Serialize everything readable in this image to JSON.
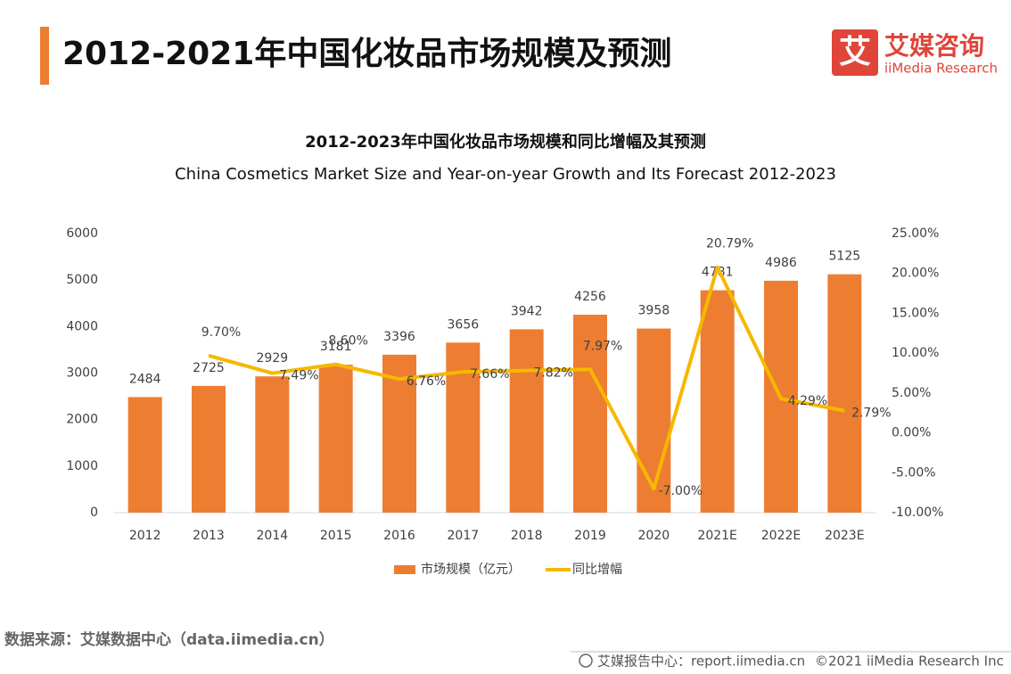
{
  "header": {
    "title": "2012-2021年中国化妆品市场规模及预测",
    "logo_mark": "艾",
    "logo_cn": "艾媒咨询",
    "logo_en": "iiMedia Research"
  },
  "chart_data": {
    "type": "bar",
    "title": "2012-2023年中国化妆品市场规模和同比增幅及其预测",
    "subtitle": "China Cosmetics Market Size and Year-on-year Growth and Its Forecast 2012-2023",
    "categories": [
      "2012",
      "2013",
      "2014",
      "2015",
      "2016",
      "2017",
      "2018",
      "2019",
      "2020",
      "2021E",
      "2022E",
      "2023E"
    ],
    "series": [
      {
        "name": "市场规模（亿元）",
        "type": "bar",
        "color": "#ed7d31",
        "values": [
          2484,
          2725,
          2929,
          3181,
          3396,
          3656,
          3942,
          4256,
          3958,
          4781,
          4986,
          5125
        ]
      },
      {
        "name": "同比增幅",
        "type": "line",
        "axis": "y2",
        "color": "#f5b800",
        "values": [
          null,
          9.7,
          7.49,
          8.6,
          6.76,
          7.66,
          7.82,
          7.97,
          -7.0,
          20.79,
          4.29,
          2.79
        ],
        "value_labels": [
          null,
          "9.70%",
          "7.49%",
          "8.60%",
          "6.76%",
          "7.66%",
          "7.82%",
          "7.97%",
          "-7.00%",
          "20.79%",
          "4.29%",
          "2.79%"
        ]
      }
    ],
    "ylim": [
      0,
      6000
    ],
    "yticks": [
      0,
      1000,
      2000,
      3000,
      4000,
      5000,
      6000
    ],
    "y2lim": [
      -10,
      25
    ],
    "y2ticks": [
      {
        "value": -10,
        "label": "-10.00%"
      },
      {
        "value": -5,
        "label": "-5.00%"
      },
      {
        "value": 0,
        "label": "0.00%"
      },
      {
        "value": 5,
        "label": "5.00%"
      },
      {
        "value": 10,
        "label": "10.00%"
      },
      {
        "value": 15,
        "label": "15.00%"
      },
      {
        "value": 20,
        "label": "20.00%"
      },
      {
        "value": 25,
        "label": "25.00%"
      }
    ],
    "grid": false,
    "legend": "bottom"
  },
  "footer": {
    "source": "数据来源：艾媒数据中心（data.iimedia.cn）",
    "report": "艾媒报告中心：report.iimedia.cn",
    "copyright": "©2021 iiMedia Research Inc"
  }
}
